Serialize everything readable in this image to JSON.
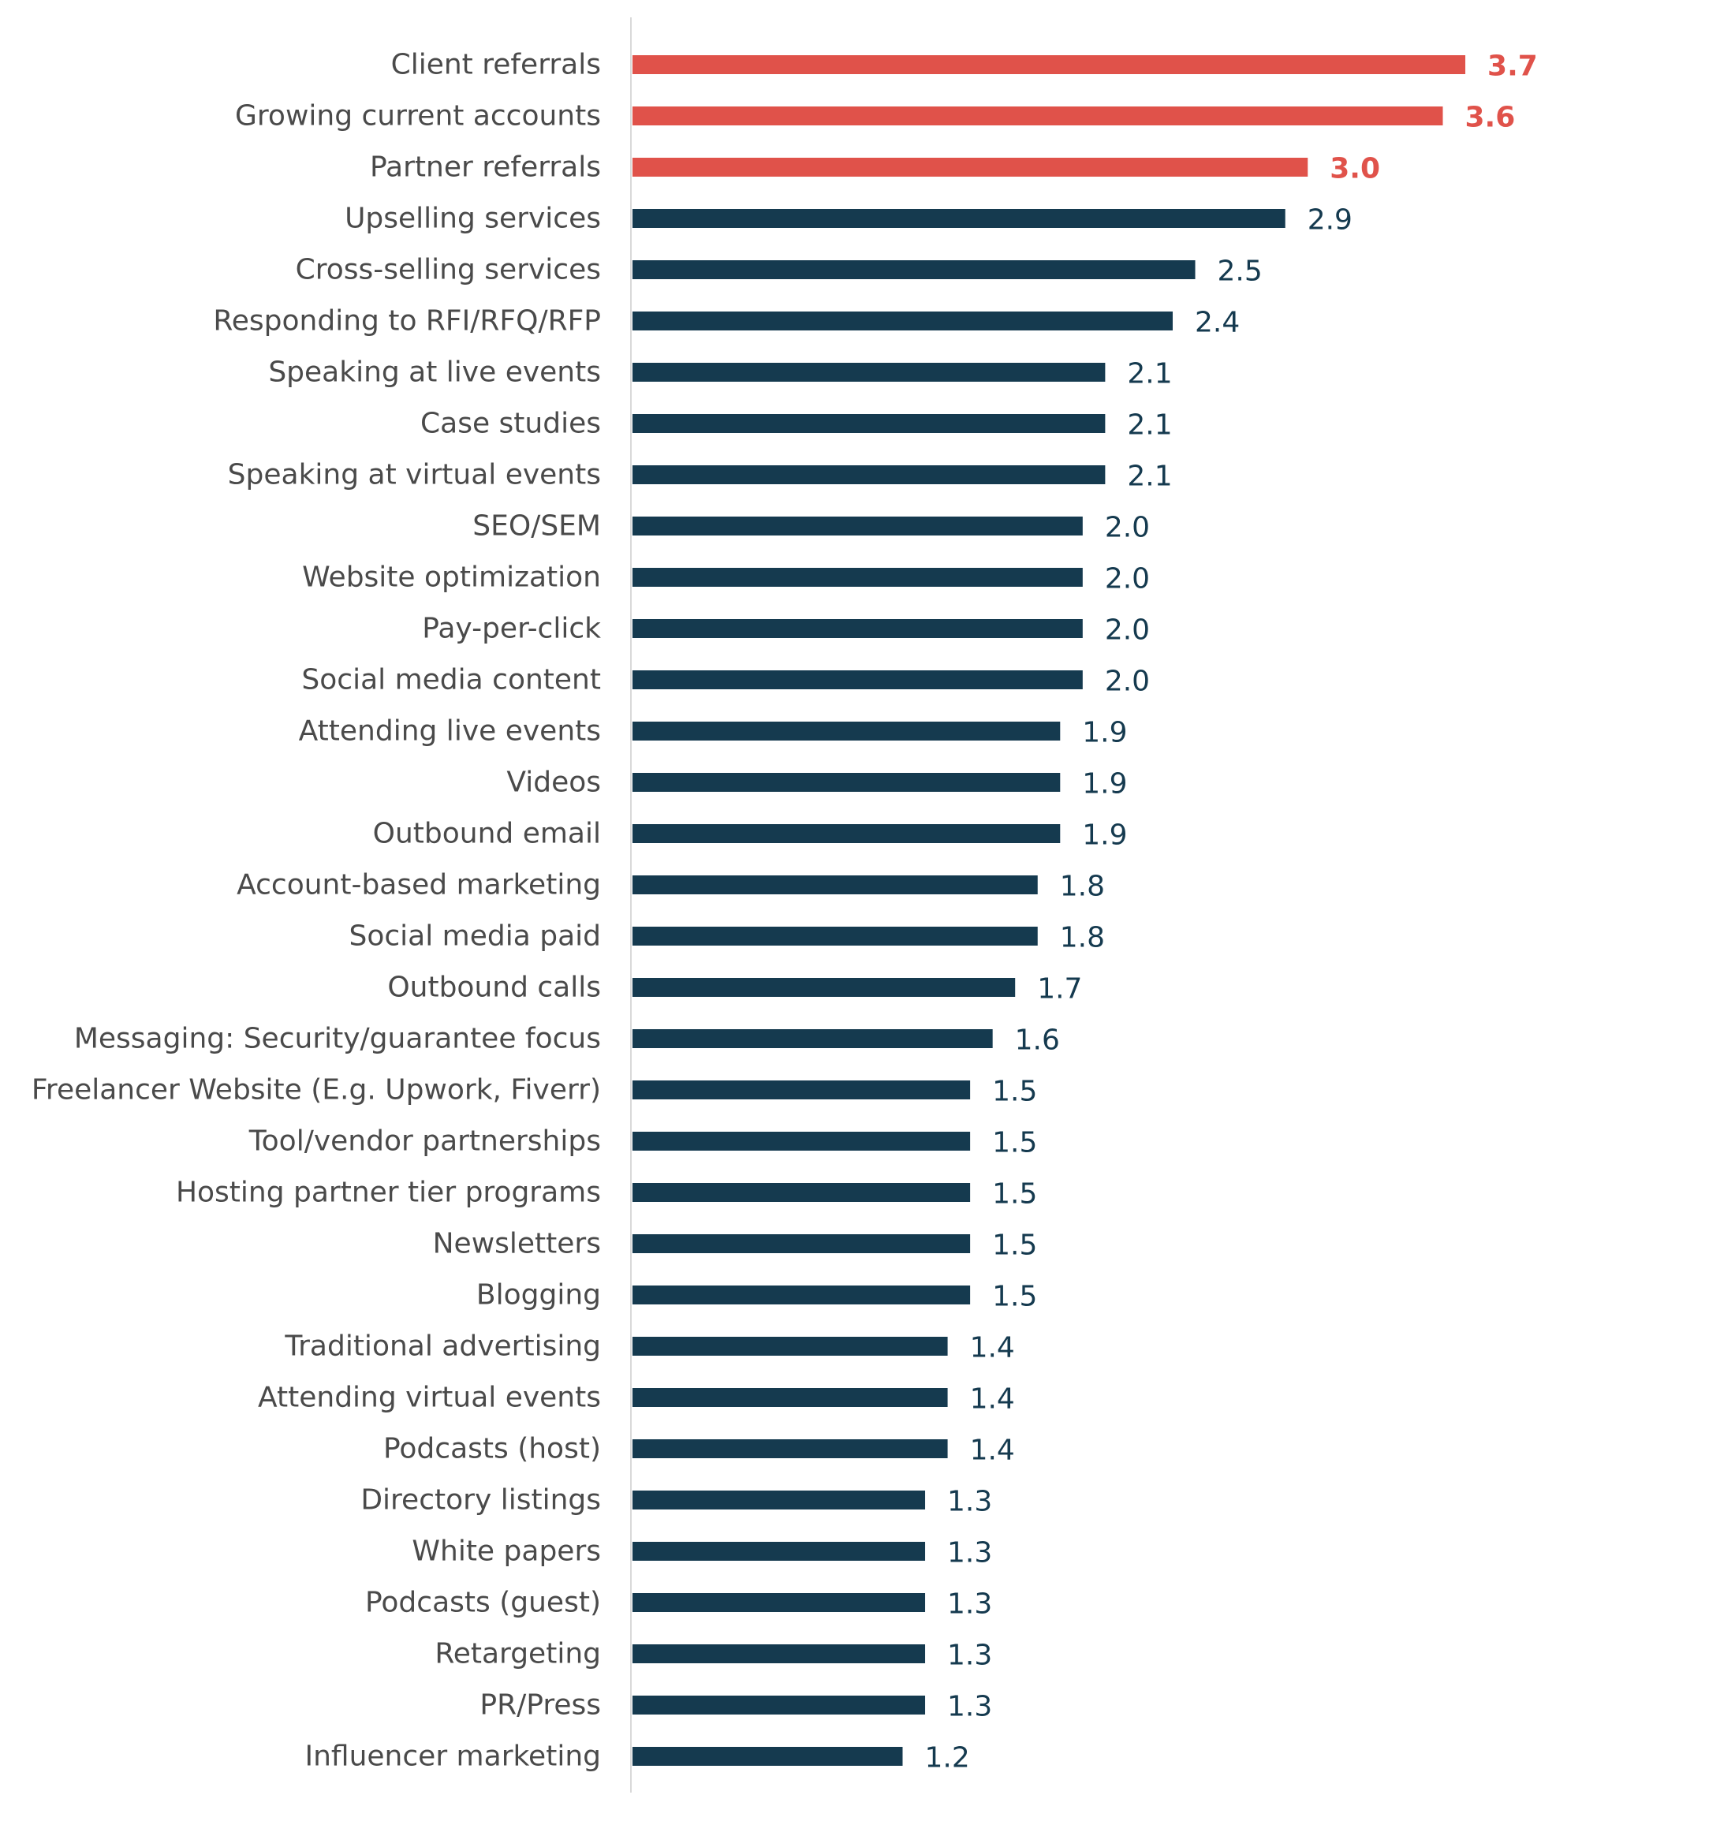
{
  "chart_data": {
    "type": "bar",
    "orientation": "horizontal",
    "title": "",
    "xlabel": "",
    "ylabel": "",
    "xlim": [
      0,
      4.8
    ],
    "grid": false,
    "legend": "none",
    "categories": [
      "Client referrals",
      "Growing current accounts",
      "Partner referrals",
      "Upselling services",
      "Cross-selling services",
      "Responding to RFI/RFQ/RFP",
      "Speaking at live events",
      "Case studies",
      "Speaking at virtual events",
      "SEO/SEM",
      "Website optimization",
      "Pay-per-click",
      "Social media content",
      "Attending live events",
      "Videos",
      "Outbound email",
      "Account-based marketing",
      "Social media paid",
      "Outbound calls",
      "Messaging: Security/guarantee focus",
      "Freelancer Website (E.g. Upwork, Fiverr)",
      "Tool/vendor partnerships",
      "Hosting partner tier programs",
      "Newsletters",
      "Blogging",
      "Traditional advertising",
      "Attending virtual events",
      "Podcasts (host)",
      "Directory listings",
      "White papers",
      "Podcasts (guest)",
      "Retargeting",
      "PR/Press",
      "Influencer marketing"
    ],
    "values": [
      3.7,
      3.6,
      3.0,
      2.9,
      2.5,
      2.4,
      2.1,
      2.1,
      2.1,
      2.0,
      2.0,
      2.0,
      2.0,
      1.9,
      1.9,
      1.9,
      1.8,
      1.8,
      1.7,
      1.6,
      1.5,
      1.5,
      1.5,
      1.5,
      1.5,
      1.4,
      1.4,
      1.4,
      1.3,
      1.3,
      1.3,
      1.3,
      1.3,
      1.2
    ],
    "labels": [
      "3.7",
      "3.6",
      "3.0",
      "2.9",
      "2.5",
      "2.4",
      "2.1",
      "2.1",
      "2.1",
      "2.0",
      "2.0",
      "2.0",
      "2.0",
      "1.9",
      "1.9",
      "1.9",
      "1.8",
      "1.8",
      "1.7",
      "1.6",
      "1.5",
      "1.5",
      "1.5",
      "1.5",
      "1.5",
      "1.4",
      "1.4",
      "1.4",
      "1.3",
      "1.3",
      "1.3",
      "1.3",
      "1.3",
      "1.2"
    ],
    "highlighted_count": 3,
    "colors": {
      "highlight": "#e0524a",
      "default": "#153a4f",
      "axis": "#d9d9d9"
    }
  }
}
